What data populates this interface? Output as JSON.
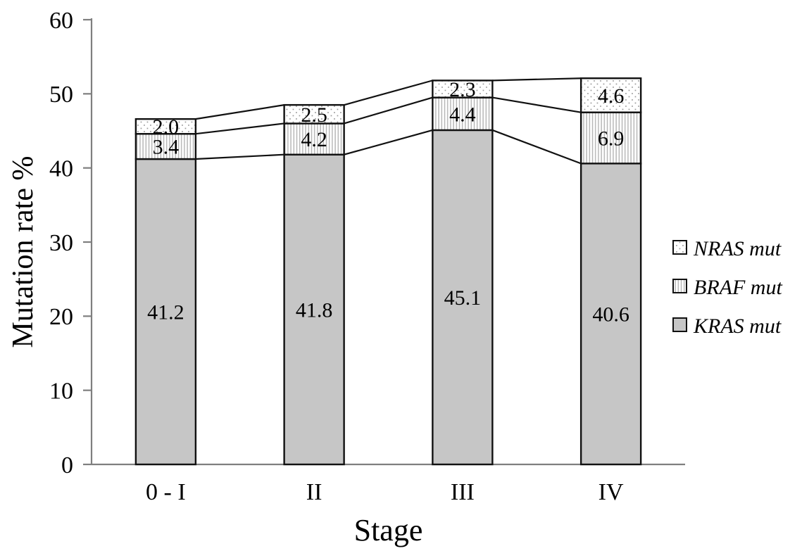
{
  "chart_data": {
    "type": "bar",
    "stacked": true,
    "categories": [
      "0 - I",
      "II",
      "III",
      "IV"
    ],
    "series": [
      {
        "name": "KRAS mut",
        "pattern": "solid",
        "values": [
          41.2,
          41.8,
          45.1,
          40.6
        ]
      },
      {
        "name": "BRAF mut",
        "pattern": "vstripes",
        "values": [
          3.4,
          4.2,
          4.4,
          6.9
        ]
      },
      {
        "name": "NRAS mut",
        "pattern": "dots",
        "values": [
          2.0,
          2.5,
          2.3,
          4.6
        ]
      }
    ],
    "xlabel": "Stage",
    "ylabel": "Mutation rate %",
    "ylim": [
      0,
      60
    ],
    "yticks": [
      0,
      10,
      20,
      30,
      40,
      50,
      60
    ],
    "grid": false,
    "series_lines": true,
    "legend": {
      "position": "right",
      "entries": [
        {
          "label": "NRAS mut",
          "pattern": "dots"
        },
        {
          "label": "BRAF mut",
          "pattern": "vstripes"
        },
        {
          "label": "KRAS mut",
          "pattern": "solid"
        }
      ]
    }
  },
  "colors": {
    "background": "#ffffff",
    "bar_fill_gray": "#c6c6c6",
    "pattern_dot": "#9a9a9a",
    "pattern_stripe": "#b3b3b3",
    "bar_border": "#111111",
    "axis": "#7f7f7f",
    "text": "#000000"
  }
}
